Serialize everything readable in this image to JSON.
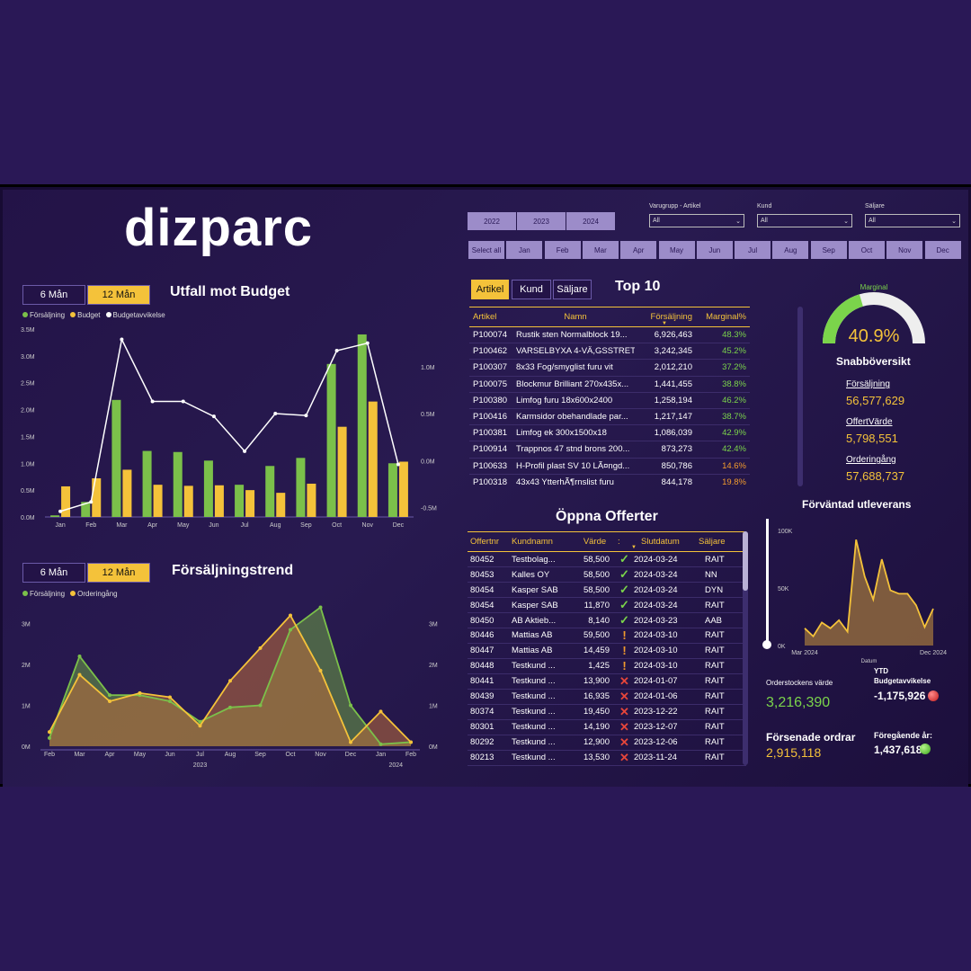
{
  "logo": "dizparc",
  "budget_section": {
    "toggle": [
      "6 Mån",
      "12 Mån"
    ],
    "title": "Utfall mot Budget",
    "legend": [
      "Försäljning",
      "Budget",
      "Budgetavvikelse"
    ]
  },
  "trend_section": {
    "toggle": [
      "6 Mån",
      "12 Mån"
    ],
    "title": "Försäljningstrend",
    "legend": [
      "Försäljning",
      "Orderingång"
    ]
  },
  "colors": {
    "green": "#7bc04a",
    "yellow": "#f4c23a",
    "white": "#ffffff",
    "accent": "#f4c23a",
    "good": "#7bd44b",
    "warn": "#f29b2d"
  },
  "chart_data": [
    {
      "type": "bar",
      "title": "Utfall mot Budget",
      "categories": [
        "Jan",
        "Feb",
        "Mar",
        "Apr",
        "May",
        "Jun",
        "Jul",
        "Aug",
        "Sep",
        "Oct",
        "Nov",
        "Dec"
      ],
      "yticks_left": [
        "0.0M",
        "0.5M",
        "1.0M",
        "1.5M",
        "2.0M",
        "2.5M",
        "3.0M",
        "3.5M"
      ],
      "yticks_right": [
        "-0.5M",
        "0.0M",
        "0.5M",
        "1.0M"
      ],
      "ylim": [
        0,
        3.5
      ],
      "ylim_right": [
        -0.6,
        1.4
      ],
      "series": [
        {
          "name": "Försäljning",
          "values": [
            0.03,
            0.28,
            2.18,
            1.23,
            1.21,
            1.05,
            0.6,
            0.95,
            1.1,
            2.85,
            3.4,
            1.0
          ]
        },
        {
          "name": "Budget",
          "values": [
            0.57,
            0.72,
            0.88,
            0.6,
            0.58,
            0.59,
            0.5,
            0.45,
            0.62,
            1.68,
            2.15,
            1.03
          ]
        },
        {
          "name": "Budgetavvikelse",
          "values": [
            -0.54,
            -0.44,
            1.29,
            0.63,
            0.63,
            0.47,
            0.1,
            0.5,
            0.48,
            1.17,
            1.25,
            -0.04
          ]
        }
      ]
    },
    {
      "type": "area",
      "title": "Försäljningstrend",
      "categories": [
        "Feb",
        "Mar",
        "Apr",
        "May",
        "Jun",
        "Jul",
        "Aug",
        "Sep",
        "Oct",
        "Nov",
        "Dec",
        "Jan",
        "Feb"
      ],
      "year_labels": [
        "2023",
        "2024"
      ],
      "yticks": [
        "0M",
        "1M",
        "2M",
        "3M"
      ],
      "yticks_right": [
        "0M",
        "1M",
        "2M",
        "3M"
      ],
      "ylim": [
        0,
        3.3
      ],
      "series": [
        {
          "name": "Försäljning",
          "values": [
            0.2,
            2.2,
            1.25,
            1.25,
            1.1,
            0.6,
            0.95,
            1.0,
            2.85,
            3.4,
            1.0,
            0.05,
            0.1
          ]
        },
        {
          "name": "Orderingång",
          "values": [
            0.35,
            1.75,
            1.1,
            1.3,
            1.2,
            0.5,
            1.6,
            2.4,
            3.2,
            1.85,
            0.1,
            0.85,
            0.1
          ]
        }
      ]
    },
    {
      "type": "area",
      "title": "Förväntad utleverans",
      "x_labels": [
        "Mar 2024",
        "Dec 2024"
      ],
      "xlabel": "Datum",
      "yticks": [
        "0K",
        "50K",
        "100K"
      ],
      "ylim": [
        0,
        100
      ],
      "values": [
        15,
        8,
        20,
        15,
        22,
        12,
        92,
        60,
        40,
        75,
        48,
        45,
        45,
        35,
        16,
        32
      ]
    }
  ],
  "filters": {
    "years": [
      "2022",
      "2023",
      "2024"
    ],
    "months": [
      "Select all",
      "Jan",
      "Feb",
      "Mar",
      "Apr",
      "May",
      "Jun",
      "Jul",
      "Aug",
      "Sep",
      "Oct",
      "Nov",
      "Dec"
    ],
    "dropdowns": [
      {
        "label": "Varugrupp - Artikel",
        "value": "All"
      },
      {
        "label": "Kund",
        "value": "All"
      },
      {
        "label": "Säljare",
        "value": "All"
      }
    ]
  },
  "top10": {
    "tabs": [
      "Artikel",
      "Kund",
      "Säljare"
    ],
    "title": "Top 10",
    "headers": [
      "Artikel",
      "Namn",
      "Försäljning",
      "Marginal%"
    ],
    "rows": [
      [
        "P100074",
        "Rustik sten Normalblock 19...",
        "6,926,463",
        "48.3%"
      ],
      [
        "P100462",
        "VARSELBYXA 4-VÄ,GSSTRET...",
        "3,242,345",
        "45.2%"
      ],
      [
        "P100307",
        "8x33 Fog/smyglist furu vit",
        "2,012,210",
        "37.2%"
      ],
      [
        "P100075",
        "Blockmur Brilliant 270x435x...",
        "1,441,455",
        "38.8%"
      ],
      [
        "P100380",
        "Limfog furu 18x600x2400",
        "1,258,194",
        "46.2%"
      ],
      [
        "P100416",
        "Karmsidor obehandlade par...",
        "1,217,147",
        "38.7%"
      ],
      [
        "P100381",
        "Limfog ek 300x1500x18",
        "1,086,039",
        "42.9%"
      ],
      [
        "P100914",
        "Trappnos 47 stnd brons 200...",
        "873,273",
        "42.4%"
      ],
      [
        "P100633",
        "H-Profil plast SV 10 LÃ¤ngd...",
        "850,786",
        "14.6%"
      ],
      [
        "P100318",
        "43x43 YtterhÃ¶rnslist furu",
        "844,178",
        "19.8%"
      ]
    ]
  },
  "gauge": {
    "label": "Marginal",
    "value": "40.9%",
    "fraction": 0.409
  },
  "overview": {
    "title": "Snabböversikt",
    "items": [
      {
        "label": "Försäljning",
        "value": "56,577,629"
      },
      {
        "label": "OffertVärde",
        "value": "5,798,551"
      },
      {
        "label": "Orderingång",
        "value": "57,688,737"
      }
    ]
  },
  "offers": {
    "title": "Öppna Offerter",
    "headers": [
      "Offertnr",
      "Kundnamn",
      "Värde",
      "",
      "Slutdatum",
      "Säljare"
    ],
    "rows": [
      [
        "80452",
        "Testbolag...",
        "58,500",
        "check",
        "2024-03-24",
        "RAIT"
      ],
      [
        "80453",
        "Kalles OY",
        "58,500",
        "check",
        "2024-03-24",
        "NN"
      ],
      [
        "80454",
        "Kasper SAB",
        "58,500",
        "check",
        "2024-03-24",
        "DYN"
      ],
      [
        "80454",
        "Kasper SAB",
        "11,870",
        "check",
        "2024-03-24",
        "RAIT"
      ],
      [
        "80450",
        "AB Aktieb...",
        "8,140",
        "check",
        "2024-03-23",
        "AAB"
      ],
      [
        "80446",
        "Mattias AB",
        "59,500",
        "warn",
        "2024-03-10",
        "RAIT"
      ],
      [
        "80447",
        "Mattias AB",
        "14,459",
        "warn",
        "2024-03-10",
        "RAIT"
      ],
      [
        "80448",
        "Testkund ...",
        "1,425",
        "warn",
        "2024-03-10",
        "RAIT"
      ],
      [
        "80441",
        "Testkund ...",
        "13,900",
        "cross",
        "2024-01-07",
        "RAIT"
      ],
      [
        "80439",
        "Testkund ...",
        "16,935",
        "cross",
        "2024-01-06",
        "RAIT"
      ],
      [
        "80374",
        "Testkund ...",
        "19,450",
        "cross",
        "2023-12-22",
        "RAIT"
      ],
      [
        "80301",
        "Testkund ...",
        "14,190",
        "cross",
        "2023-12-07",
        "RAIT"
      ],
      [
        "80292",
        "Testkund ...",
        "12,900",
        "cross",
        "2023-12-06",
        "RAIT"
      ],
      [
        "80213",
        "Testkund ...",
        "13,530",
        "cross",
        "2023-11-24",
        "RAIT"
      ]
    ]
  },
  "delivery": {
    "title": "Förväntad utleverans",
    "order_stock_label": "Orderstockens värde",
    "order_stock_value": "3,216,390",
    "ytd_label_1": "YTD",
    "ytd_label_2": "Budgetavvikelse",
    "ytd_value": "-1,175,926",
    "late_label": "Försenade ordrar",
    "late_value": "2,915,118",
    "prev_label": "Föregående år:",
    "prev_value": "1,437,618"
  }
}
